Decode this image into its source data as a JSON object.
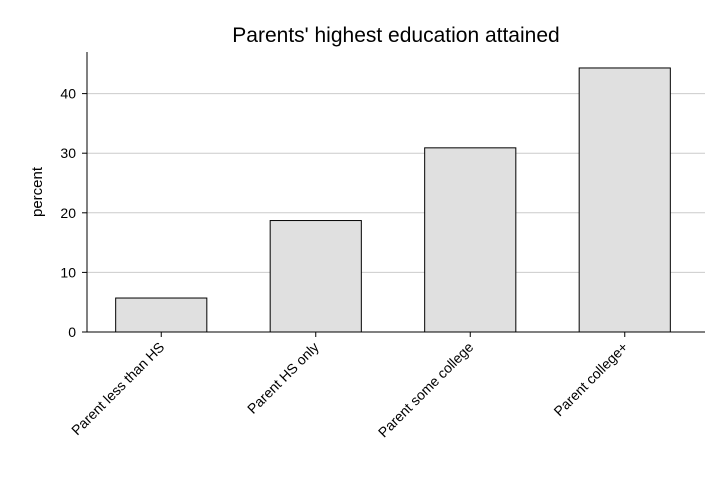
{
  "chart_data": {
    "type": "bar",
    "title": "Parents' highest education attained",
    "xlabel": "",
    "ylabel": "percent",
    "categories": [
      "Parent less than HS",
      "Parent HS only",
      "Parent some college",
      "Parent college+"
    ],
    "values": [
      5.7,
      18.7,
      30.9,
      44.3
    ],
    "ylim": [
      0,
      48
    ],
    "yticks": [
      0,
      10,
      20,
      30,
      40
    ],
    "grid": true,
    "colors": {
      "bar_fill": "#e0e0e0",
      "bar_stroke": "#000000",
      "grid": "#cccccc"
    }
  }
}
